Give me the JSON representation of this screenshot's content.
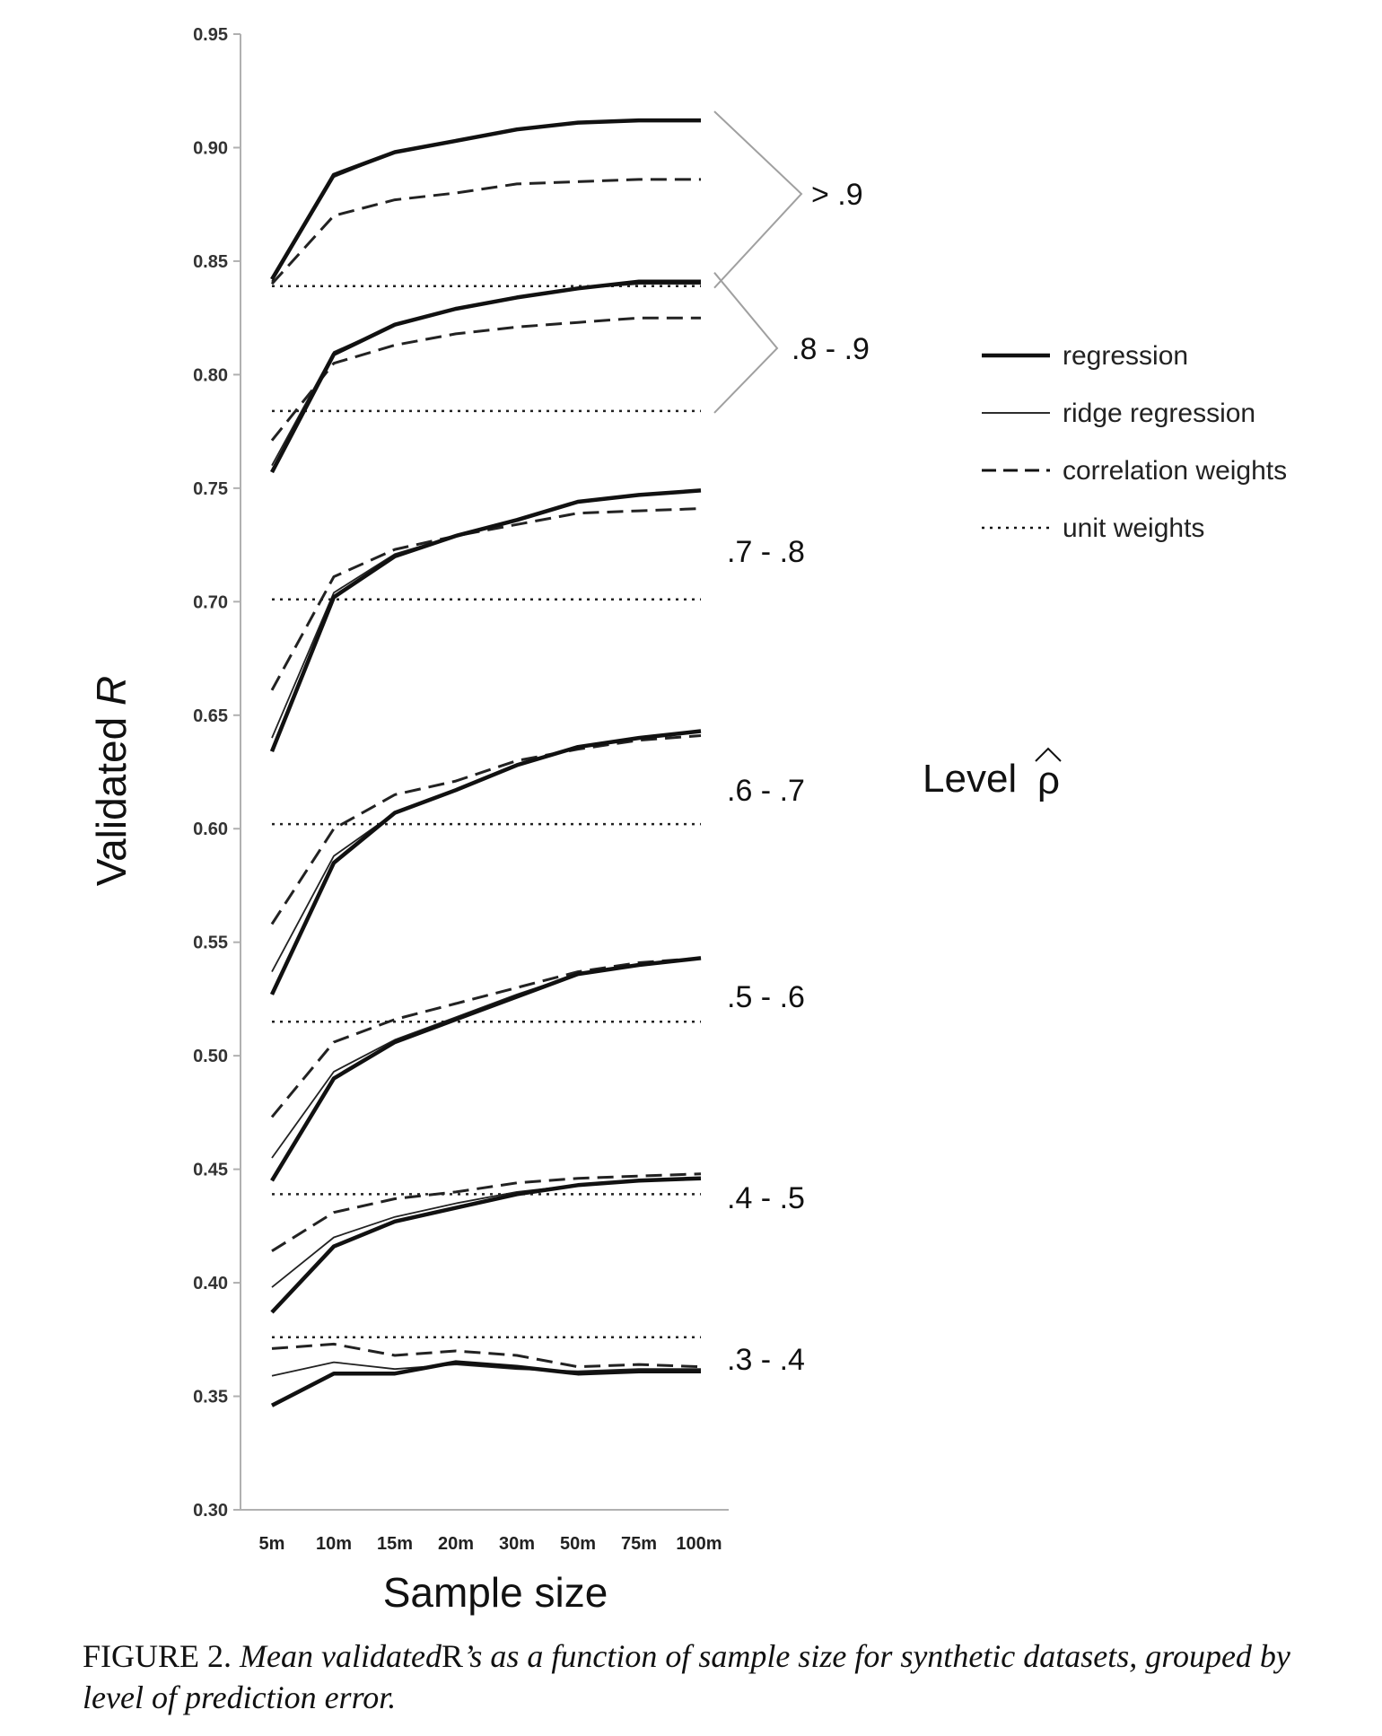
{
  "chart_data": {
    "type": "line",
    "xlabel": "Sample size",
    "ylabel": "Validated R",
    "ylim": [
      0.3,
      0.95
    ],
    "yticks": [
      "0.30",
      "0.35",
      "0.40",
      "0.45",
      "0.50",
      "0.55",
      "0.60",
      "0.65",
      "0.70",
      "0.75",
      "0.80",
      "0.85",
      "0.90",
      "0.95"
    ],
    "categories": [
      "5m",
      "10m",
      "15m",
      "20m",
      "30m",
      "50m",
      "75m",
      "100m"
    ],
    "legend": {
      "title": "Level",
      "symbol": "ρ",
      "placement": "right",
      "entries": [
        {
          "name": "regression",
          "style": "solid-thick"
        },
        {
          "name": "ridge regression",
          "style": "solid-thin"
        },
        {
          "name": "correlation weights",
          "style": "dashed"
        },
        {
          "name": "unit weights",
          "style": "dotted"
        }
      ]
    },
    "groups": [
      {
        "label": "> .9",
        "regression": [
          0.842,
          0.888,
          0.898,
          0.903,
          0.908,
          0.911,
          0.912,
          0.912
        ],
        "ridge_regression": [
          0.841,
          0.887,
          0.898,
          0.903,
          0.908,
          0.911,
          0.912,
          0.912
        ],
        "correlation_weights": [
          0.84,
          0.87,
          0.877,
          0.88,
          0.884,
          0.885,
          0.886,
          0.886
        ],
        "unit_weights": 0.839
      },
      {
        "label": ".8 - .9",
        "regression": [
          0.757,
          0.809,
          0.822,
          0.829,
          0.834,
          0.838,
          0.841,
          0.841
        ],
        "ridge_regression": [
          0.76,
          0.81,
          0.822,
          0.829,
          0.834,
          0.838,
          0.84,
          0.84
        ],
        "correlation_weights": [
          0.771,
          0.805,
          0.813,
          0.818,
          0.821,
          0.823,
          0.825,
          0.825
        ],
        "unit_weights": 0.784
      },
      {
        "label": ".7 - .8",
        "regression": [
          0.634,
          0.702,
          0.72,
          0.729,
          0.736,
          0.744,
          0.747,
          0.749
        ],
        "ridge_regression": [
          0.64,
          0.704,
          0.721,
          0.729,
          0.736,
          0.744,
          0.747,
          0.749
        ],
        "correlation_weights": [
          0.661,
          0.711,
          0.723,
          0.729,
          0.734,
          0.739,
          0.74,
          0.741
        ],
        "unit_weights": 0.701
      },
      {
        "label": ".6 - .7",
        "regression": [
          0.527,
          0.585,
          0.607,
          0.617,
          0.628,
          0.636,
          0.64,
          0.643
        ],
        "ridge_regression": [
          0.537,
          0.588,
          0.607,
          0.617,
          0.628,
          0.636,
          0.64,
          0.643
        ],
        "correlation_weights": [
          0.558,
          0.6,
          0.615,
          0.621,
          0.63,
          0.635,
          0.639,
          0.641
        ],
        "unit_weights": 0.602
      },
      {
        "label": ".5 - .6",
        "regression": [
          0.445,
          0.49,
          0.506,
          0.516,
          0.526,
          0.536,
          0.54,
          0.543
        ],
        "ridge_regression": [
          0.455,
          0.493,
          0.507,
          0.517,
          0.527,
          0.536,
          0.54,
          0.543
        ],
        "correlation_weights": [
          0.473,
          0.506,
          0.516,
          0.523,
          0.53,
          0.537,
          0.541,
          0.543
        ],
        "unit_weights": 0.515
      },
      {
        "label": ".4 - .5",
        "regression": [
          0.387,
          0.416,
          0.427,
          0.433,
          0.439,
          0.443,
          0.445,
          0.446
        ],
        "ridge_regression": [
          0.398,
          0.42,
          0.429,
          0.435,
          0.44,
          0.443,
          0.445,
          0.446
        ],
        "correlation_weights": [
          0.414,
          0.431,
          0.437,
          0.44,
          0.444,
          0.446,
          0.447,
          0.448
        ],
        "unit_weights": 0.439
      },
      {
        "label": ".3 - .4",
        "regression": [
          0.346,
          0.36,
          0.36,
          0.365,
          0.363,
          0.36,
          0.361,
          0.361
        ],
        "ridge_regression": [
          0.359,
          0.365,
          0.362,
          0.364,
          0.362,
          0.361,
          0.362,
          0.362
        ],
        "correlation_weights": [
          0.371,
          0.373,
          0.368,
          0.37,
          0.368,
          0.363,
          0.364,
          0.363
        ],
        "unit_weights": 0.376
      }
    ]
  },
  "caption": {
    "figure_label": "FIGURE 2.",
    "text_1": "Mean validated",
    "text_2": "R",
    "text_3": "’s as a function of sample size for synthetic datasets, grouped by level of prediction error."
  }
}
